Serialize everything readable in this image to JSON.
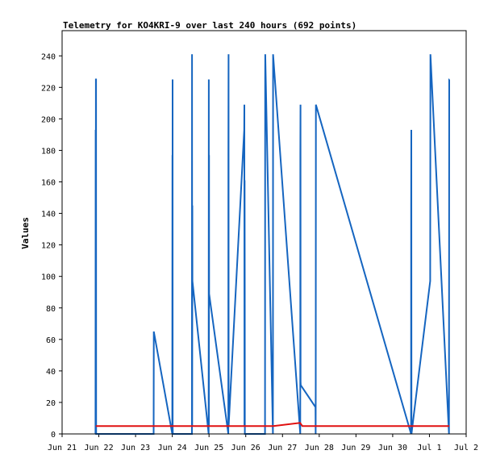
{
  "chart_data": {
    "type": "line",
    "title": "Telemetry for KO4KRI-9 over last 240 hours (692 points)",
    "xlabel": "",
    "ylabel": "Values",
    "xlim": [
      "2023-06-21 00:00",
      "2023-07-02 00:00"
    ],
    "ylim": [
      0,
      256
    ],
    "x_ticks": [
      "Jun 21",
      "Jun 22",
      "Jun 23",
      "Jun 24",
      "Jun 25",
      "Jun 26",
      "Jun 27",
      "Jun 28",
      "Jun 29",
      "Jun 30",
      "Jul 1",
      "Jul 2"
    ],
    "y_ticks": [
      0,
      20,
      40,
      60,
      80,
      100,
      120,
      140,
      160,
      180,
      200,
      220,
      240
    ],
    "grid": false,
    "colors": {
      "blue": "#1565c0",
      "red": "#e01010"
    },
    "series": [
      {
        "color": "#1565c0",
        "x": [
          "2023-06-21 21:50",
          "2023-06-21 21:55",
          "2023-06-21 22:00",
          "2023-06-21 22:05",
          "2023-06-21 22:10",
          "2023-06-21 22:15",
          "2023-06-23 11:50",
          "2023-06-23 11:55",
          "2023-06-24 00:00",
          "2023-06-24 00:04",
          "2023-06-24 00:08",
          "2023-06-24 00:12",
          "2023-06-24 00:16",
          "2023-06-24 00:20",
          "2023-06-24 12:50",
          "2023-06-24 12:55",
          "2023-06-24 13:00",
          "2023-06-24 13:05",
          "2023-06-24 13:10",
          "2023-06-24 23:45",
          "2023-06-24 23:50",
          "2023-06-24 23:55",
          "2023-06-25 00:00",
          "2023-06-25 00:05",
          "2023-06-25 12:35",
          "2023-06-25 12:40",
          "2023-06-25 12:45",
          "2023-06-25 12:50",
          "2023-06-25 23:00",
          "2023-06-25 23:05",
          "2023-06-25 23:10",
          "2023-06-25 23:15",
          "2023-06-25 23:20",
          "2023-06-25 23:25",
          "2023-06-26 12:35",
          "2023-06-26 12:40",
          "2023-06-26 12:45",
          "2023-06-26 17:45",
          "2023-06-26 17:50",
          "2023-06-27 11:35",
          "2023-06-27 11:40",
          "2023-06-27 11:45",
          "2023-06-27 11:50",
          "2023-06-27 11:55",
          "2023-06-27 21:35",
          "2023-06-27 21:40",
          "2023-06-27 21:45",
          "2023-06-27 21:50",
          "2023-06-30 12:00",
          "2023-06-30 12:05",
          "2023-06-30 12:10",
          "2023-06-30 12:15",
          "2023-07-01 00:30",
          "2023-07-01 00:35",
          "2023-07-01 00:40",
          "2023-07-01 12:45",
          "2023-07-01 12:50",
          "2023-07-01 12:55",
          "2023-07-01 13:00"
        ],
        "y": [
          0,
          193,
          5,
          225,
          225,
          0,
          0,
          65,
          0,
          177,
          5,
          225,
          5,
          0,
          0,
          241,
          5,
          145,
          97,
          0,
          225,
          5,
          177,
          89,
          0,
          177,
          241,
          5,
          193,
          209,
          5,
          161,
          89,
          0,
          0,
          225,
          241,
          0,
          241,
          0,
          177,
          209,
          33,
          31,
          17,
          0,
          33,
          209,
          0,
          145,
          193,
          0,
          97,
          193,
          241,
          0,
          81,
          225,
          225
        ]
      },
      {
        "color": "#e01010",
        "x": [
          "2023-06-21 22:00",
          "2023-06-26 18:00",
          "2023-06-27 11:30",
          "2023-06-27 13:00",
          "2023-07-01 13:00"
        ],
        "y": [
          5,
          5,
          7,
          5,
          5
        ]
      }
    ]
  }
}
